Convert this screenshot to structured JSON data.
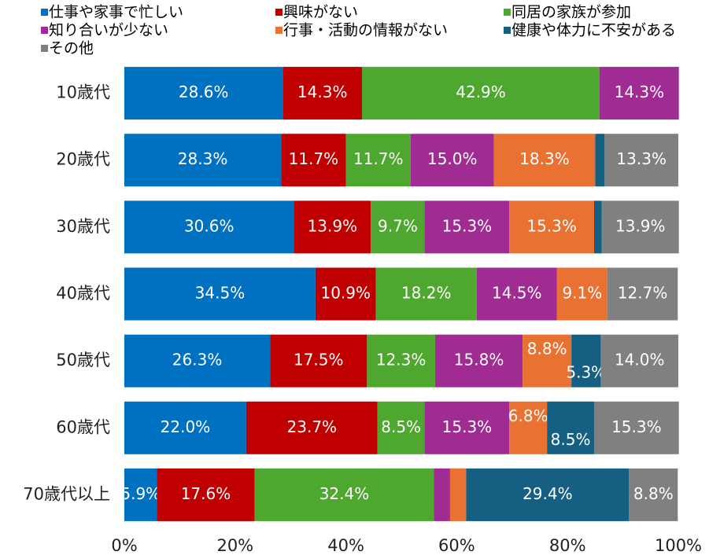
{
  "chart_data": {
    "type": "stacked_barh",
    "categories": [
      "10歳代",
      "20歳代",
      "30歳代",
      "40歳代",
      "50歳代",
      "60歳代",
      "70歳代以上"
    ],
    "series": [
      {
        "name": "仕事や家事で忙しい",
        "color": "#0070c0",
        "values": [
          28.6,
          28.3,
          30.6,
          34.5,
          26.3,
          22.0,
          5.9
        ],
        "value_labels": [
          "28.6%",
          "28.3%",
          "30.6%",
          "34.5%",
          "26.3%",
          "22.0%",
          "5.9%"
        ]
      },
      {
        "name": "興味がない",
        "color": "#c00000",
        "values": [
          14.3,
          11.7,
          13.9,
          10.9,
          17.5,
          23.7,
          17.6
        ],
        "value_labels": [
          "14.3%",
          "11.7%",
          "13.9%",
          "10.9%",
          "17.5%",
          "23.7%",
          "17.6%"
        ]
      },
      {
        "name": "同居の家族が参加",
        "color": "#4ea72e",
        "values": [
          42.9,
          11.7,
          9.7,
          18.2,
          12.3,
          8.5,
          32.4
        ],
        "value_labels": [
          "42.9%",
          "11.7%",
          "9.7%",
          "18.2%",
          "12.3%",
          "8.5%",
          "32.4%"
        ]
      },
      {
        "name": "知り合いが少ない",
        "color": "#a02b93",
        "values": [
          14.3,
          15.0,
          15.3,
          14.5,
          15.8,
          15.3,
          2.9
        ],
        "value_labels": [
          "14.3%",
          "15.0%",
          "15.3%",
          "14.5%",
          "15.8%",
          "15.3%",
          null
        ]
      },
      {
        "name": "行事・活動の情報がない",
        "color": "#e97132",
        "values": [
          0,
          18.3,
          15.3,
          9.1,
          8.8,
          6.8,
          2.9
        ],
        "value_labels": [
          null,
          "18.3%",
          "15.3%",
          "9.1%",
          "8.8%",
          "6.8%",
          null
        ]
      },
      {
        "name": "健康や体力に不安がある",
        "color": "#156082",
        "values": [
          0,
          1.7,
          1.4,
          0,
          5.3,
          8.5,
          29.4
        ],
        "value_labels": [
          null,
          null,
          null,
          null,
          "5.3%",
          "8.5%",
          "29.4%"
        ]
      },
      {
        "name": "その他",
        "color": "#808080",
        "values": [
          0,
          13.3,
          13.9,
          12.7,
          14.0,
          15.3,
          8.8
        ],
        "value_labels": [
          null,
          "13.3%",
          "13.9%",
          "12.7%",
          "14.0%",
          "15.3%",
          "8.8%"
        ]
      }
    ],
    "xlim": [
      0,
      100
    ],
    "xticks": [
      {
        "value": 0,
        "label": "0%"
      },
      {
        "value": 20,
        "label": "20%"
      },
      {
        "value": 40,
        "label": "40%"
      },
      {
        "value": 60,
        "label": "60%"
      },
      {
        "value": 80,
        "label": "80%"
      },
      {
        "value": 100,
        "label": "100%"
      }
    ],
    "legend": "top"
  }
}
